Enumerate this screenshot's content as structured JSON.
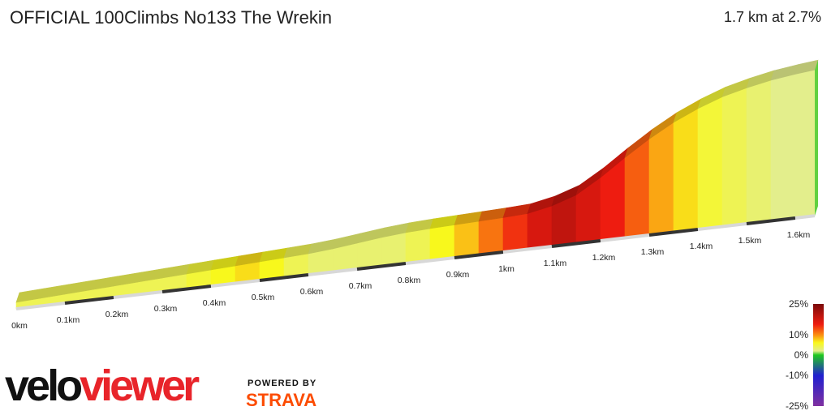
{
  "header": {
    "title": "OFFICIAL 100Climbs No133 The Wrekin",
    "summary": "1.7 km at 2.7%"
  },
  "chart_data": {
    "type": "area",
    "title": "OFFICIAL 100Climbs No133 The Wrekin",
    "xlabel": "",
    "ylabel": "",
    "x_unit": "km",
    "x_tick_labels": [
      "0km",
      "0.1km",
      "0.2km",
      "0.3km",
      "0.4km",
      "0.5km",
      "0.6km",
      "0.7km",
      "0.8km",
      "0.9km",
      "1km",
      "1.1km",
      "1.2km",
      "1.3km",
      "1.4km",
      "1.5km",
      "1.6km"
    ],
    "x": [
      0,
      0.05,
      0.1,
      0.15,
      0.2,
      0.25,
      0.3,
      0.35,
      0.4,
      0.45,
      0.5,
      0.55,
      0.6,
      0.65,
      0.7,
      0.75,
      0.8,
      0.85,
      0.9,
      0.95,
      1.0,
      1.05,
      1.1,
      1.15,
      1.2,
      1.25,
      1.3,
      1.35,
      1.4,
      1.45,
      1.5,
      1.55,
      1.6,
      1.64
    ],
    "elevation_relative": [
      0,
      0.3,
      0.6,
      0.9,
      1.2,
      1.5,
      1.8,
      2.1,
      2.4,
      2.7,
      3.0,
      3.3,
      3.6,
      4.1,
      4.8,
      5.5,
      6.0,
      6.3,
      6.5,
      6.7,
      6.9,
      7.2,
      8.4,
      10.4,
      14.0,
      18.2,
      22.1,
      25.5,
      28.2,
      30.4,
      31.9,
      33.1,
      33.9,
      34.4
    ],
    "gradient_percent": [
      4,
      4,
      4,
      4,
      4,
      4,
      4,
      5,
      6,
      7,
      6,
      4,
      3,
      3,
      3,
      3,
      4,
      6,
      8,
      11,
      14,
      17,
      19,
      17,
      15,
      12,
      9,
      7,
      5,
      4,
      3,
      2,
      2
    ],
    "color_scale": {
      "labels": [
        "25%",
        "10%",
        "0%",
        "-10%",
        "-25%"
      ],
      "stops": [
        {
          "value": 25,
          "color": "#7a0a0a"
        },
        {
          "value": 15,
          "color": "#ee1c10"
        },
        {
          "value": 10,
          "color": "#fb8a10"
        },
        {
          "value": 6,
          "color": "#f8f81c"
        },
        {
          "value": 2,
          "color": "#e3ee8c"
        },
        {
          "value": 0,
          "color": "#20c820"
        },
        {
          "value": -10,
          "color": "#2020d0"
        },
        {
          "value": -25,
          "color": "#8030a0"
        }
      ]
    }
  },
  "branding": {
    "logo_part_a": "velo",
    "logo_part_b": "viewer",
    "powered_by": "POWERED BY",
    "strava": "STRAVA"
  }
}
